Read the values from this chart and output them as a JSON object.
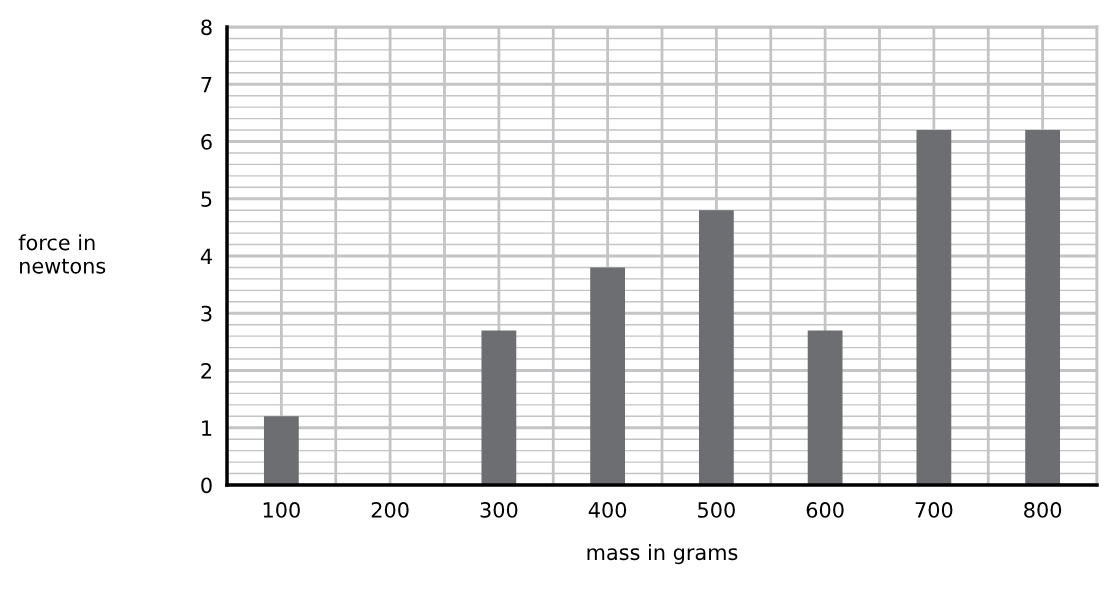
{
  "chart_data": {
    "type": "bar",
    "xlabel": "mass in grams",
    "ylabel": "force in\nnewtons",
    "categories": [
      "100",
      "200",
      "300",
      "400",
      "500",
      "600",
      "700",
      "800"
    ],
    "values": [
      1.2,
      null,
      2.7,
      3.8,
      4.8,
      2.7,
      6.2,
      6.2
    ],
    "color": "#6d6e71",
    "ylim": [
      0,
      8
    ],
    "yticks": [
      0,
      1,
      2,
      3,
      4,
      5,
      6,
      7,
      8
    ],
    "grid": true
  }
}
